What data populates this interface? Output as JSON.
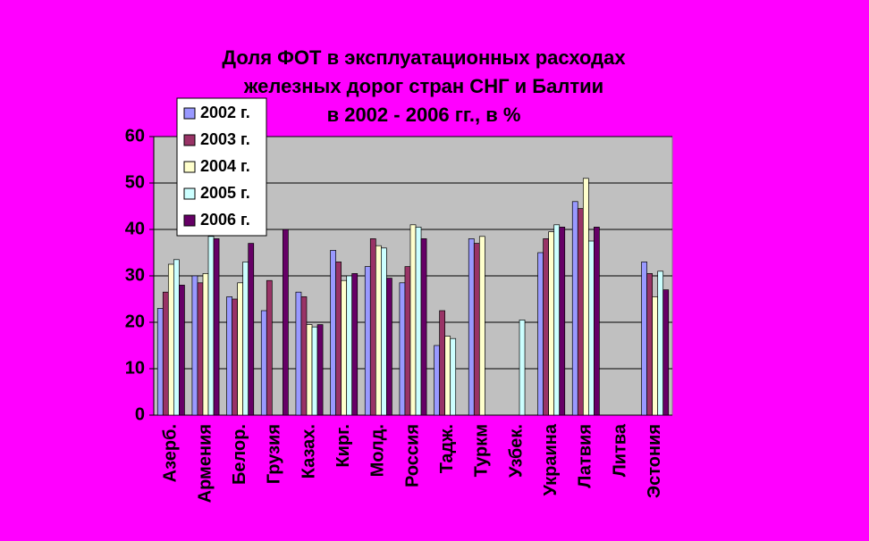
{
  "chart_data": {
    "type": "bar",
    "title": [
      "Доля ФОТ в эксплуатационных расходах",
      "железных дорог стран СНГ и Балтии",
      "в 2002 - 2006 гг., в %"
    ],
    "categories": [
      "Азерб.",
      "Армения",
      "Белор.",
      "Грузия",
      "Казах.",
      "Кирг.",
      "Молд.",
      "Россия",
      "Тадж.",
      "Туркм",
      "Узбек.",
      "Украина",
      "Латвия",
      "Литва",
      "Эстония"
    ],
    "series": [
      {
        "name": "2002 г.",
        "color": "#9999ff",
        "values": [
          23,
          30,
          25.5,
          22.5,
          26.5,
          35.5,
          32,
          28.5,
          15,
          38,
          0,
          35,
          46,
          0,
          33
        ]
      },
      {
        "name": "2003 г.",
        "color": "#993366",
        "values": [
          26.5,
          28.5,
          25,
          29,
          25.5,
          33,
          38,
          32,
          22.5,
          37,
          0,
          38,
          44.5,
          0,
          30.5
        ]
      },
      {
        "name": "2004 г.",
        "color": "#ffffcc",
        "values": [
          32.5,
          30.5,
          28.5,
          0,
          19.5,
          29,
          36.5,
          41,
          17,
          38.5,
          0,
          39.5,
          51,
          0,
          25.5
        ]
      },
      {
        "name": "2005 г.",
        "color": "#ccffff",
        "values": [
          33.5,
          38.5,
          33,
          0,
          19,
          30,
          36,
          40.5,
          16.5,
          0,
          20.5,
          41,
          37.5,
          0,
          31
        ]
      },
      {
        "name": "2006 г.",
        "color": "#660066",
        "values": [
          28,
          38,
          37,
          40,
          19.5,
          30.5,
          29.5,
          38,
          0,
          0,
          0,
          40.5,
          40.5,
          0,
          27
        ]
      }
    ],
    "ylim": [
      0,
      60
    ],
    "yticks": [
      0,
      10,
      20,
      30,
      40,
      50,
      60
    ],
    "grid": true,
    "legend": "top-left"
  }
}
